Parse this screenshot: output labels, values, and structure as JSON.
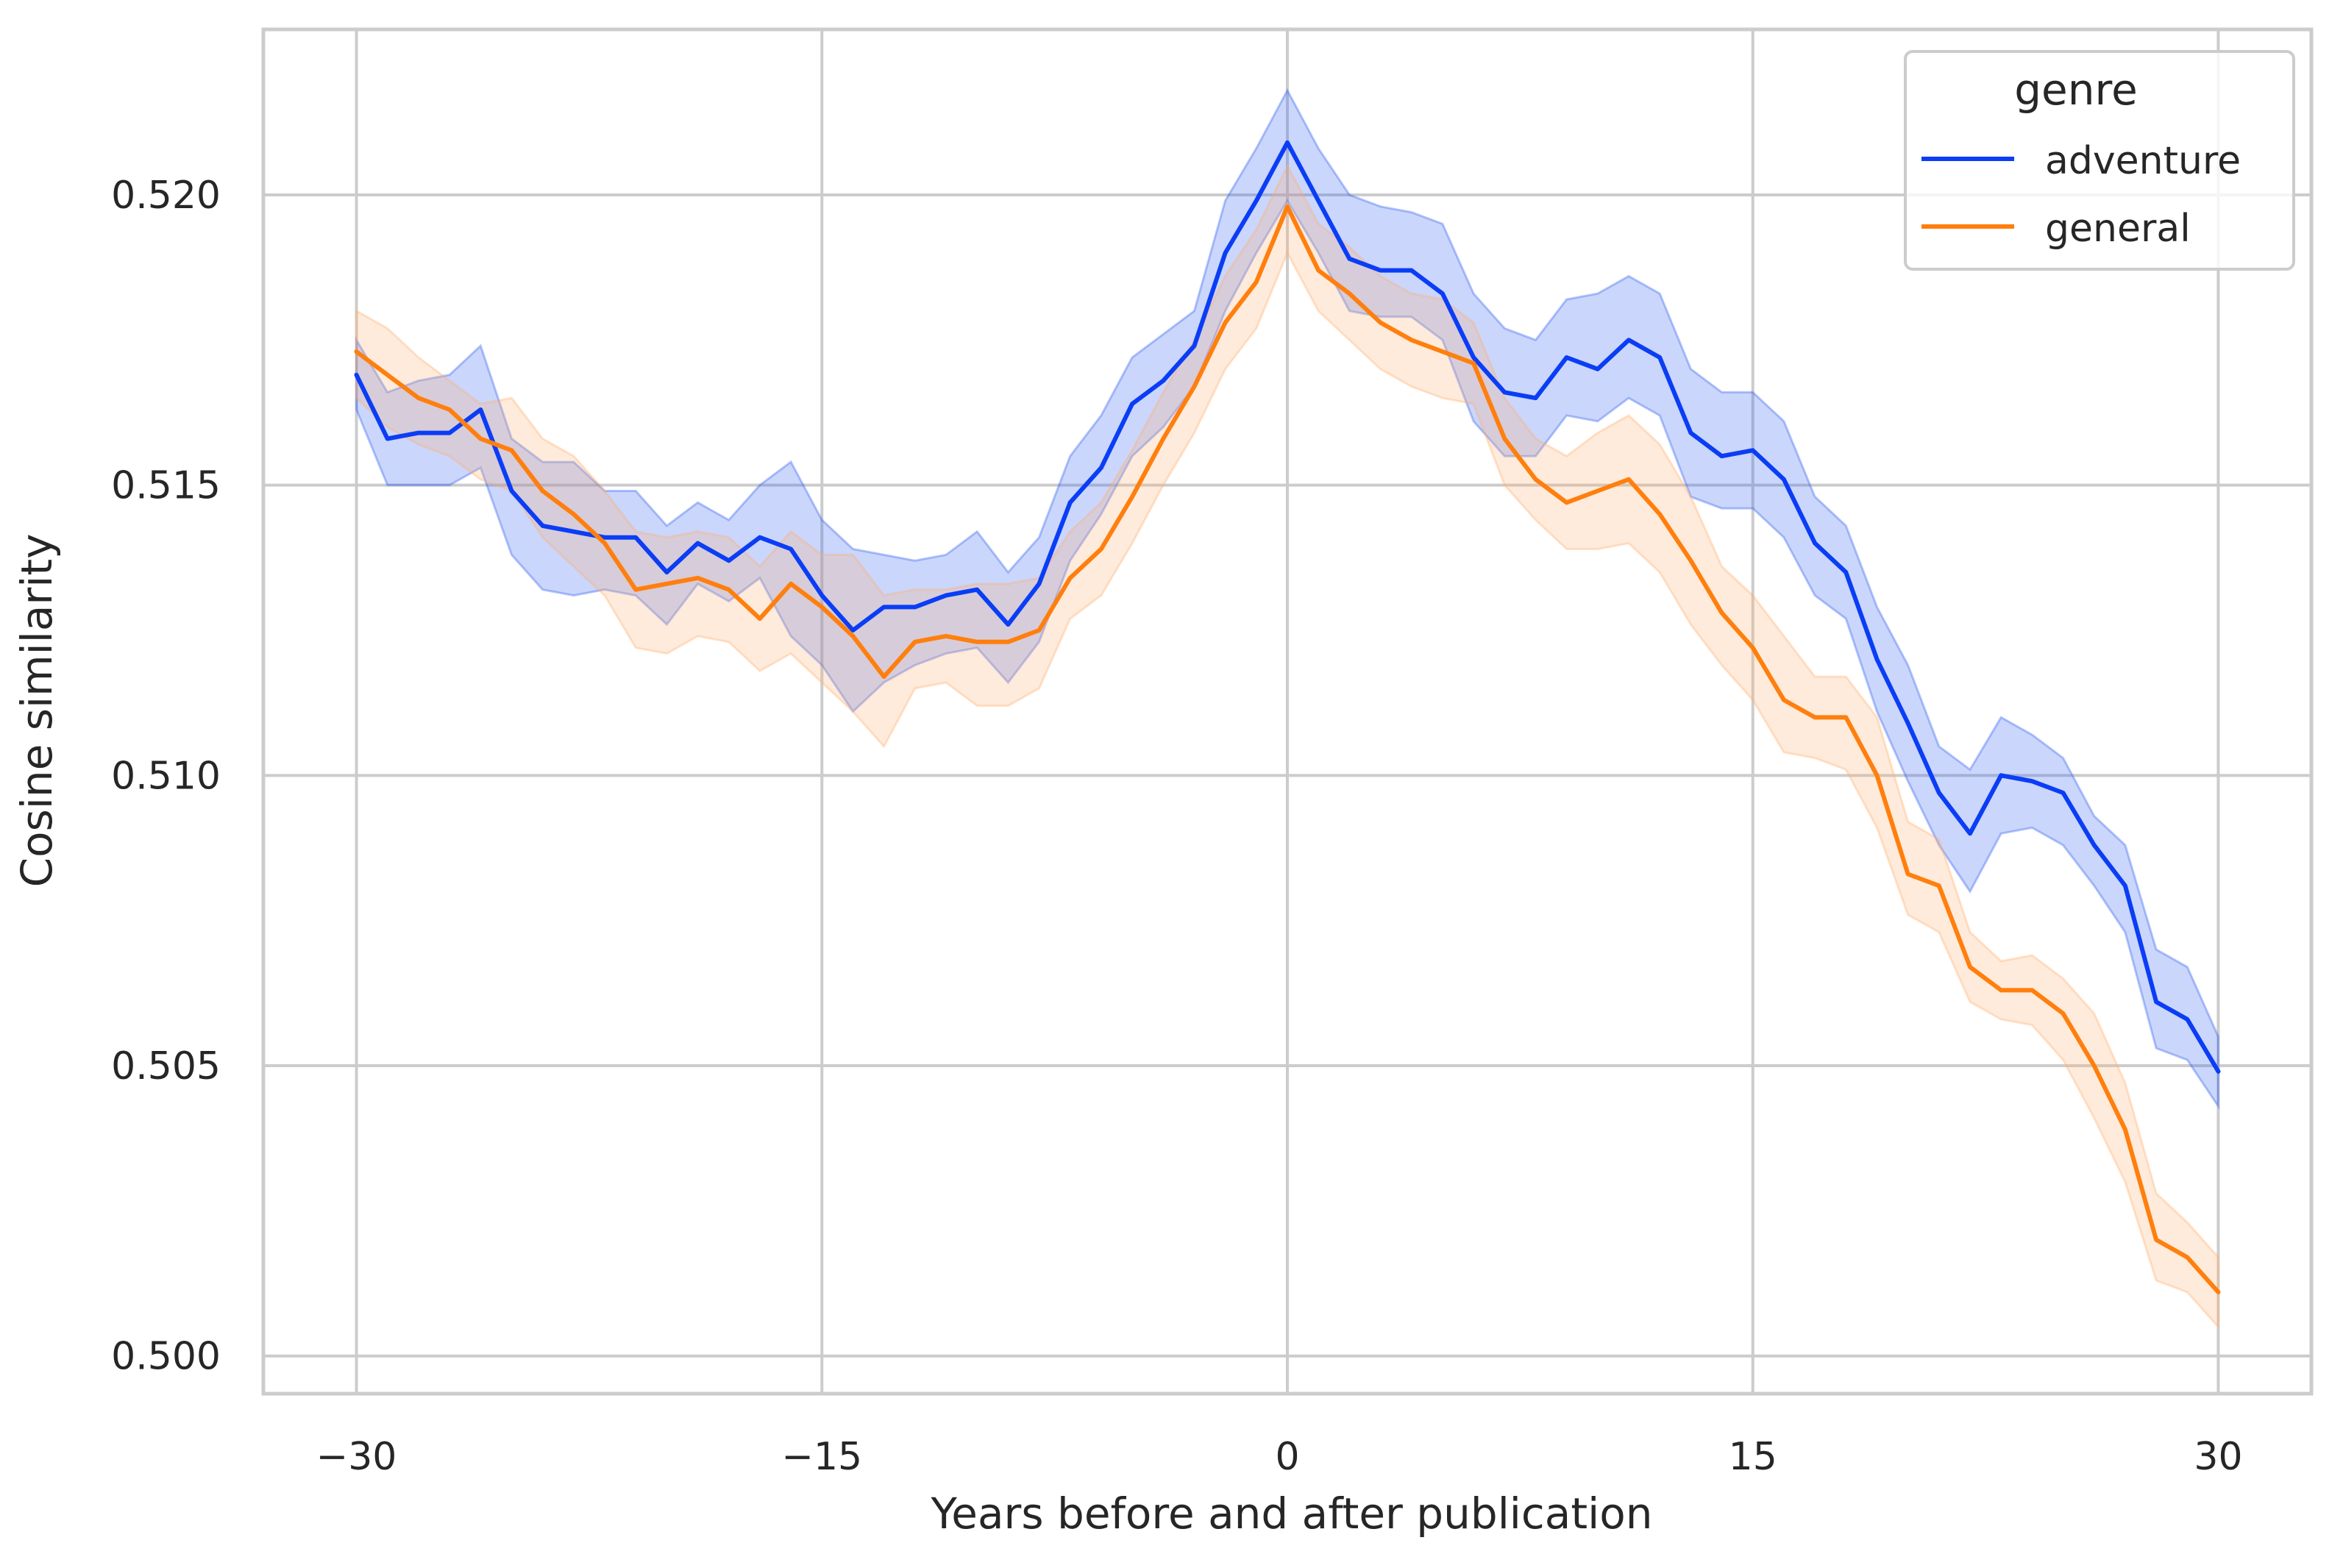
{
  "chart_data": {
    "type": "line",
    "title": "",
    "xlabel": "Years before and after publication",
    "ylabel": "Cosine similarity",
    "xlim": [
      -33,
      33
    ],
    "ylim": [
      0.49935,
      0.52285
    ],
    "xticks": [
      -30,
      -15,
      0,
      15,
      30
    ],
    "xtick_labels": [
      "−30",
      "−15",
      "0",
      "15",
      "30"
    ],
    "yticks": [
      0.5,
      0.505,
      0.51,
      0.515,
      0.52
    ],
    "ytick_labels": [
      "0.500",
      "0.505",
      "0.510",
      "0.515",
      "0.520"
    ],
    "grid": true,
    "legend": {
      "title": "genre",
      "placement": "top-right"
    },
    "x": [
      -30,
      -29,
      -28,
      -27,
      -26,
      -25,
      -24,
      -23,
      -22,
      -21,
      -20,
      -19,
      -18,
      -17,
      -16,
      -15,
      -14,
      -13,
      -12,
      -11,
      -10,
      -9,
      -8,
      -7,
      -6,
      -5,
      -4,
      -3,
      -2,
      -1,
      0,
      1,
      2,
      3,
      4,
      5,
      6,
      7,
      8,
      9,
      10,
      11,
      12,
      13,
      14,
      15,
      16,
      17,
      18,
      19,
      20,
      21,
      22,
      23,
      24,
      25,
      26,
      27,
      28,
      29,
      30
    ],
    "series": [
      {
        "name": "adventure",
        "color": "#0a3df5",
        "band_color": "#2a5cf2",
        "values": [
          0.5169,
          0.5158,
          0.5159,
          0.5159,
          0.5163,
          0.5149,
          0.5143,
          0.5142,
          0.5141,
          0.5141,
          0.5135,
          0.514,
          0.5137,
          0.5141,
          0.5139,
          0.5131,
          0.5125,
          0.5129,
          0.5129,
          0.5131,
          0.5132,
          0.5126,
          0.5133,
          0.5147,
          0.5153,
          0.5164,
          0.5168,
          0.5174,
          0.519,
          0.5199,
          0.5209,
          0.5199,
          0.5189,
          0.5187,
          0.5187,
          0.5183,
          0.5172,
          0.5166,
          0.5165,
          0.5172,
          0.517,
          0.5175,
          0.5172,
          0.5159,
          0.5155,
          0.5156,
          0.5151,
          0.514,
          0.5135,
          0.512,
          0.5109,
          0.5097,
          0.509,
          0.51,
          0.5099,
          0.5097,
          0.5088,
          0.5081,
          0.5061,
          0.5058,
          0.5049
        ],
        "lower": [
          0.5163,
          0.515,
          0.515,
          0.515,
          0.5153,
          0.5138,
          0.5132,
          0.5131,
          0.5132,
          0.5131,
          0.5126,
          0.5133,
          0.513,
          0.5134,
          0.5124,
          0.5119,
          0.5111,
          0.5116,
          0.5119,
          0.5121,
          0.5122,
          0.5116,
          0.5123,
          0.5137,
          0.5145,
          0.5155,
          0.516,
          0.5167,
          0.518,
          0.519,
          0.5199,
          0.519,
          0.518,
          0.5179,
          0.5179,
          0.5175,
          0.5161,
          0.5155,
          0.5155,
          0.5162,
          0.5161,
          0.5165,
          0.5162,
          0.5148,
          0.5146,
          0.5146,
          0.5141,
          0.5131,
          0.5127,
          0.5111,
          0.5099,
          0.5088,
          0.508,
          0.509,
          0.5091,
          0.5088,
          0.5081,
          0.5073,
          0.5053,
          0.5051,
          0.5043
        ],
        "upper": [
          0.5175,
          0.5166,
          0.5168,
          0.5169,
          0.5174,
          0.5158,
          0.5154,
          0.5154,
          0.5149,
          0.5149,
          0.5143,
          0.5147,
          0.5144,
          0.515,
          0.5154,
          0.5144,
          0.5139,
          0.5138,
          0.5137,
          0.5138,
          0.5142,
          0.5135,
          0.5141,
          0.5155,
          0.5162,
          0.5172,
          0.5176,
          0.518,
          0.5199,
          0.5208,
          0.5218,
          0.5208,
          0.52,
          0.5198,
          0.5197,
          0.5195,
          0.5183,
          0.5177,
          0.5175,
          0.5182,
          0.5183,
          0.5186,
          0.5183,
          0.517,
          0.5166,
          0.5166,
          0.5161,
          0.5148,
          0.5143,
          0.5129,
          0.5119,
          0.5105,
          0.5101,
          0.511,
          0.5107,
          0.5103,
          0.5093,
          0.5088,
          0.507,
          0.5067,
          0.5055
        ]
      },
      {
        "name": "general",
        "color": "#ff7f0e",
        "band_color": "#ffb070",
        "values": [
          0.5173,
          0.5169,
          0.5165,
          0.5163,
          0.5158,
          0.5156,
          0.5149,
          0.5145,
          0.514,
          0.5132,
          0.5133,
          0.5134,
          0.5132,
          0.5127,
          0.5133,
          0.5129,
          0.5124,
          0.5117,
          0.5123,
          0.5124,
          0.5123,
          0.5123,
          0.5125,
          0.5134,
          0.5139,
          0.5148,
          0.5158,
          0.5167,
          0.5178,
          0.5185,
          0.5198,
          0.5187,
          0.5183,
          0.5178,
          0.5175,
          0.5173,
          0.5171,
          0.5158,
          0.5151,
          0.5147,
          0.5149,
          0.5151,
          0.5145,
          0.5137,
          0.5128,
          0.5122,
          0.5113,
          0.511,
          0.511,
          0.51,
          0.5083,
          0.5081,
          0.5067,
          0.5063,
          0.5063,
          0.5059,
          0.505,
          0.5039,
          0.502,
          0.5017,
          0.5011
        ],
        "lower": [
          0.5165,
          0.516,
          0.5157,
          0.5155,
          0.5151,
          0.5149,
          0.5141,
          0.5136,
          0.5131,
          0.5122,
          0.5121,
          0.5124,
          0.5123,
          0.5118,
          0.5121,
          0.5116,
          0.5111,
          0.5105,
          0.5115,
          0.5116,
          0.5112,
          0.5112,
          0.5115,
          0.5127,
          0.5131,
          0.514,
          0.515,
          0.5159,
          0.517,
          0.5177,
          0.519,
          0.518,
          0.5175,
          0.517,
          0.5167,
          0.5165,
          0.5164,
          0.515,
          0.5144,
          0.5139,
          0.5139,
          0.514,
          0.5135,
          0.5126,
          0.5119,
          0.5113,
          0.5104,
          0.5103,
          0.5101,
          0.5091,
          0.5076,
          0.5073,
          0.5061,
          0.5058,
          0.5057,
          0.5051,
          0.5041,
          0.503,
          0.5013,
          0.5011,
          0.5005
        ],
        "upper": [
          0.518,
          0.5177,
          0.5172,
          0.5168,
          0.5164,
          0.5165,
          0.5158,
          0.5155,
          0.5149,
          0.5142,
          0.5141,
          0.5142,
          0.5141,
          0.5136,
          0.5142,
          0.5138,
          0.5138,
          0.5131,
          0.5132,
          0.5132,
          0.5133,
          0.5133,
          0.5134,
          0.5142,
          0.5147,
          0.5156,
          0.5166,
          0.5175,
          0.5186,
          0.5194,
          0.5205,
          0.5195,
          0.5191,
          0.5186,
          0.5183,
          0.5182,
          0.5178,
          0.5165,
          0.5158,
          0.5155,
          0.5159,
          0.5162,
          0.5157,
          0.5148,
          0.5136,
          0.5131,
          0.5124,
          0.5117,
          0.5117,
          0.511,
          0.5092,
          0.5089,
          0.5073,
          0.5068,
          0.5069,
          0.5065,
          0.5059,
          0.5047,
          0.5028,
          0.5023,
          0.5017
        ]
      }
    ],
    "style": {
      "grid_color": "#cccccc",
      "axis_color": "#cccccc",
      "text_color": "#262626"
    }
  }
}
